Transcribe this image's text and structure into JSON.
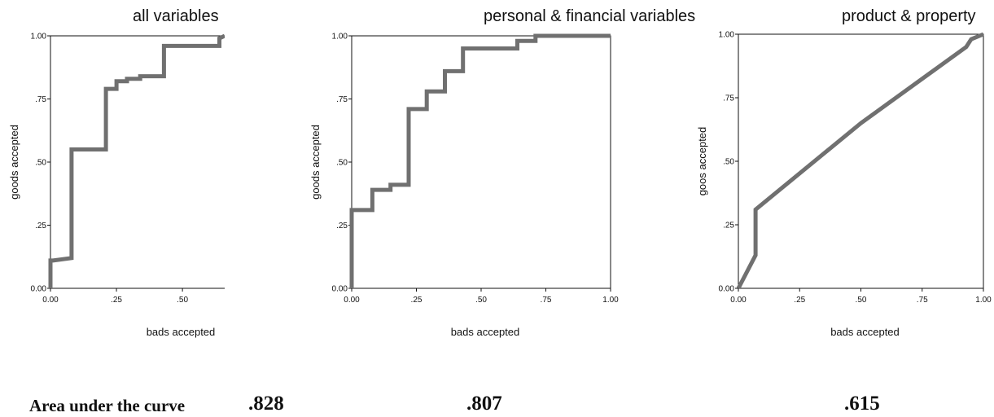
{
  "chart_data": [
    {
      "type": "line",
      "title": "all variables",
      "xlabel": "bads accepted",
      "ylabel": "goods accepted",
      "xlim": [
        0,
        0.66
      ],
      "ylim": [
        0,
        1
      ],
      "x_ticks": [
        "0.00",
        ".25",
        ".50"
      ],
      "y_ticks": [
        "0.00",
        ".25",
        ".50",
        ".75",
        "1.00"
      ],
      "grid": false,
      "auc": ".828",
      "series": [
        {
          "color": "#707070",
          "x": [
            0,
            0,
            0.01,
            0.01,
            0.08,
            0.08,
            0.21,
            0.21,
            0.25,
            0.25,
            0.29,
            0.29,
            0.34,
            0.34,
            0.38,
            0.38,
            0.43,
            0.43,
            0.64,
            0.64,
            0.66
          ],
          "y": [
            0,
            0.11,
            0.11,
            0.11,
            0.12,
            0.55,
            0.55,
            0.79,
            0.79,
            0.82,
            0.82,
            0.83,
            0.83,
            0.84,
            0.84,
            0.84,
            0.84,
            0.96,
            0.96,
            0.99,
            1.0
          ]
        }
      ]
    },
    {
      "type": "line",
      "title": "personal & financial variables",
      "xlabel": "bads accepted",
      "ylabel": "goods accepted",
      "xlim": [
        0,
        1
      ],
      "ylim": [
        0,
        1
      ],
      "x_ticks": [
        "0.00",
        ".25",
        ".50",
        ".75",
        "1.00"
      ],
      "y_ticks": [
        "0.00",
        ".25",
        ".50",
        ".75",
        "1.00"
      ],
      "grid": false,
      "auc": ".807",
      "series": [
        {
          "color": "#707070",
          "x": [
            0,
            0,
            0.08,
            0.08,
            0.15,
            0.15,
            0.22,
            0.22,
            0.29,
            0.29,
            0.36,
            0.36,
            0.43,
            0.43,
            0.64,
            0.64,
            0.71,
            0.71,
            1.0
          ],
          "y": [
            0,
            0.31,
            0.31,
            0.39,
            0.39,
            0.41,
            0.41,
            0.71,
            0.71,
            0.78,
            0.78,
            0.86,
            0.86,
            0.95,
            0.95,
            0.98,
            0.98,
            1.0,
            1.0
          ]
        }
      ]
    },
    {
      "type": "line",
      "title": "product & property",
      "xlabel": "bads accepted",
      "ylabel": "goos accepted",
      "xlim": [
        0,
        1
      ],
      "ylim": [
        0,
        1
      ],
      "x_ticks": [
        "0.00",
        ".25",
        ".50",
        ".75",
        "1.00"
      ],
      "y_ticks": [
        "0.00",
        ".25",
        ".50",
        ".75",
        "1.00"
      ],
      "grid": false,
      "auc": ".615",
      "series": [
        {
          "color": "#707070",
          "x": [
            0,
            0.07,
            0.07,
            0.5,
            0.93,
            0.95,
            1.0
          ],
          "y": [
            0,
            0.13,
            0.31,
            0.65,
            0.95,
            0.98,
            1.0
          ]
        }
      ]
    }
  ],
  "auc_label": "Area under the curve"
}
